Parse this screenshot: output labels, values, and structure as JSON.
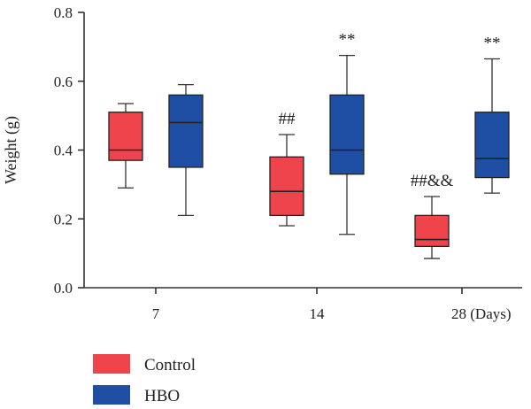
{
  "chart_data": {
    "type": "boxplot",
    "title": "",
    "xlabel": "",
    "ylabel": "Weight (g)",
    "ylim": [
      0,
      0.8
    ],
    "yticks": [
      0.0,
      0.2,
      0.4,
      0.6,
      0.8
    ],
    "ytick_labels": [
      "0.0",
      "0.2",
      "0.4",
      "0.6",
      "0.8"
    ],
    "categories": [
      "7",
      "14",
      "28 (Days)"
    ],
    "series": [
      {
        "name": "Control",
        "color": "#f0444c",
        "boxes": [
          {
            "min": 0.29,
            "q1": 0.37,
            "median": 0.4,
            "q3": 0.51,
            "max": 0.535,
            "annotation": ""
          },
          {
            "min": 0.18,
            "q1": 0.21,
            "median": 0.28,
            "q3": 0.38,
            "max": 0.445,
            "annotation": "##"
          },
          {
            "min": 0.085,
            "q1": 0.12,
            "median": 0.14,
            "q3": 0.21,
            "max": 0.265,
            "annotation": "##&&"
          }
        ]
      },
      {
        "name": "HBO",
        "color": "#1e4fa5",
        "boxes": [
          {
            "min": 0.21,
            "q1": 0.35,
            "median": 0.48,
            "q3": 0.56,
            "max": 0.59,
            "annotation": ""
          },
          {
            "min": 0.155,
            "q1": 0.33,
            "median": 0.4,
            "q3": 0.56,
            "max": 0.675,
            "annotation": "**"
          },
          {
            "min": 0.275,
            "q1": 0.32,
            "median": 0.375,
            "q3": 0.51,
            "max": 0.665,
            "annotation": "**"
          }
        ]
      }
    ],
    "legend": {
      "position": "bottom-left",
      "entries": [
        "Control",
        "HBO"
      ]
    }
  }
}
